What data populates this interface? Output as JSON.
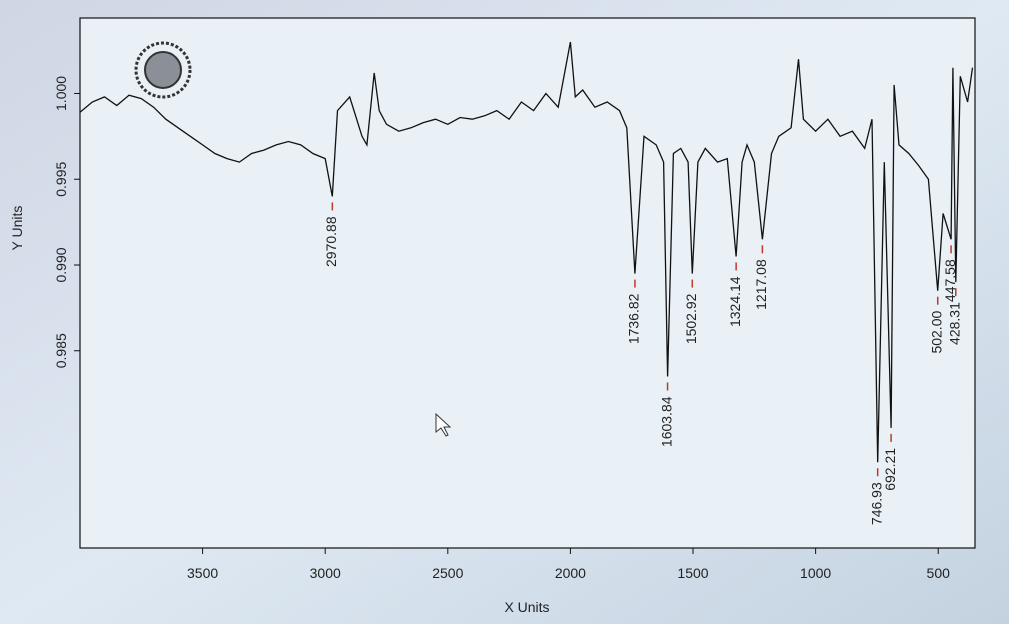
{
  "chart_data": {
    "type": "line",
    "x_label": "X Units",
    "y_label": "Y Units",
    "xlim": [
      4000,
      350
    ],
    "ylim": [
      0.9735,
      1.0044
    ],
    "xticks": [
      3500,
      3000,
      2500,
      2000,
      1500,
      1000,
      500
    ],
    "yticks": [
      {
        "value": 1,
        "label": "1.000"
      },
      0.995,
      {
        "value": 0.99,
        "label": "0.990"
      },
      0.985
    ],
    "series": [
      {
        "color": "#111111",
        "x": [
          4000,
          3950,
          3900,
          3850,
          3800,
          3750,
          3700,
          3650,
          3600,
          3550,
          3500,
          3450,
          3400,
          3350,
          3300,
          3250,
          3200,
          3150,
          3100,
          3050,
          3000,
          2970.88,
          2950,
          2900,
          2850,
          2830,
          2800,
          2780,
          2750,
          2700,
          2650,
          2600,
          2550,
          2500,
          2450,
          2400,
          2350,
          2300,
          2250,
          2200,
          2150,
          2100,
          2050,
          2000,
          1980,
          1950,
          1900,
          1850,
          1800,
          1770,
          1736.82,
          1700,
          1650,
          1620,
          1603.84,
          1580,
          1550,
          1520,
          1502.92,
          1480,
          1450,
          1400,
          1360,
          1324.14,
          1300,
          1280,
          1250,
          1217.08,
          1180,
          1150,
          1100,
          1070,
          1050,
          1000,
          950,
          900,
          850,
          800,
          770,
          746.93,
          720,
          692.21,
          680,
          660,
          620,
          580,
          540,
          502,
          480,
          447.58,
          440,
          428.31,
          410,
          380,
          360
        ],
        "values": [
          0.9989,
          0.9995,
          0.9998,
          0.9993,
          0.9999,
          0.9997,
          0.9992,
          0.9985,
          0.998,
          0.9975,
          0.997,
          0.9965,
          0.9962,
          0.996,
          0.9965,
          0.9967,
          0.997,
          0.9972,
          0.997,
          0.9965,
          0.9962,
          0.994,
          0.999,
          0.9998,
          0.9975,
          0.997,
          1.0012,
          0.999,
          0.9982,
          0.9978,
          0.998,
          0.9983,
          0.9985,
          0.9982,
          0.9986,
          0.9985,
          0.9987,
          0.999,
          0.9985,
          0.9995,
          0.999,
          1.0,
          0.9992,
          1.003,
          0.9998,
          1.0002,
          0.9992,
          0.9995,
          0.999,
          0.998,
          0.9895,
          0.9975,
          0.997,
          0.996,
          0.9835,
          0.9965,
          0.9968,
          0.996,
          0.9895,
          0.996,
          0.9968,
          0.996,
          0.9962,
          0.9905,
          0.996,
          0.997,
          0.996,
          0.9915,
          0.9965,
          0.9975,
          0.998,
          1.002,
          0.9985,
          0.9978,
          0.9985,
          0.9975,
          0.9978,
          0.9968,
          0.9985,
          0.9785,
          0.996,
          0.9805,
          1.0005,
          0.997,
          0.9965,
          0.9958,
          0.995,
          0.9885,
          0.993,
          0.9915,
          1.0015,
          0.989,
          1.001,
          0.9995,
          1.0015
        ]
      }
    ],
    "annotations": [
      {
        "value": 2970.88,
        "label": "2970.88"
      },
      {
        "value": 1736.82,
        "label": "1736.82"
      },
      {
        "value": 1603.84,
        "label": "1603.84"
      },
      {
        "value": 1502.92,
        "label": "1502.92"
      },
      {
        "value": 1324.14,
        "label": "1324.14"
      },
      {
        "value": 1217.08,
        "label": "1217.08"
      },
      {
        "value": 746.93,
        "label": "746.93"
      },
      {
        "value": 692.21,
        "label": "692.21"
      },
      {
        "value": 502,
        "label": "502.00"
      },
      {
        "value": 447.58,
        "label": "447.58"
      },
      {
        "value": 428.31,
        "label": "428.31"
      }
    ]
  }
}
